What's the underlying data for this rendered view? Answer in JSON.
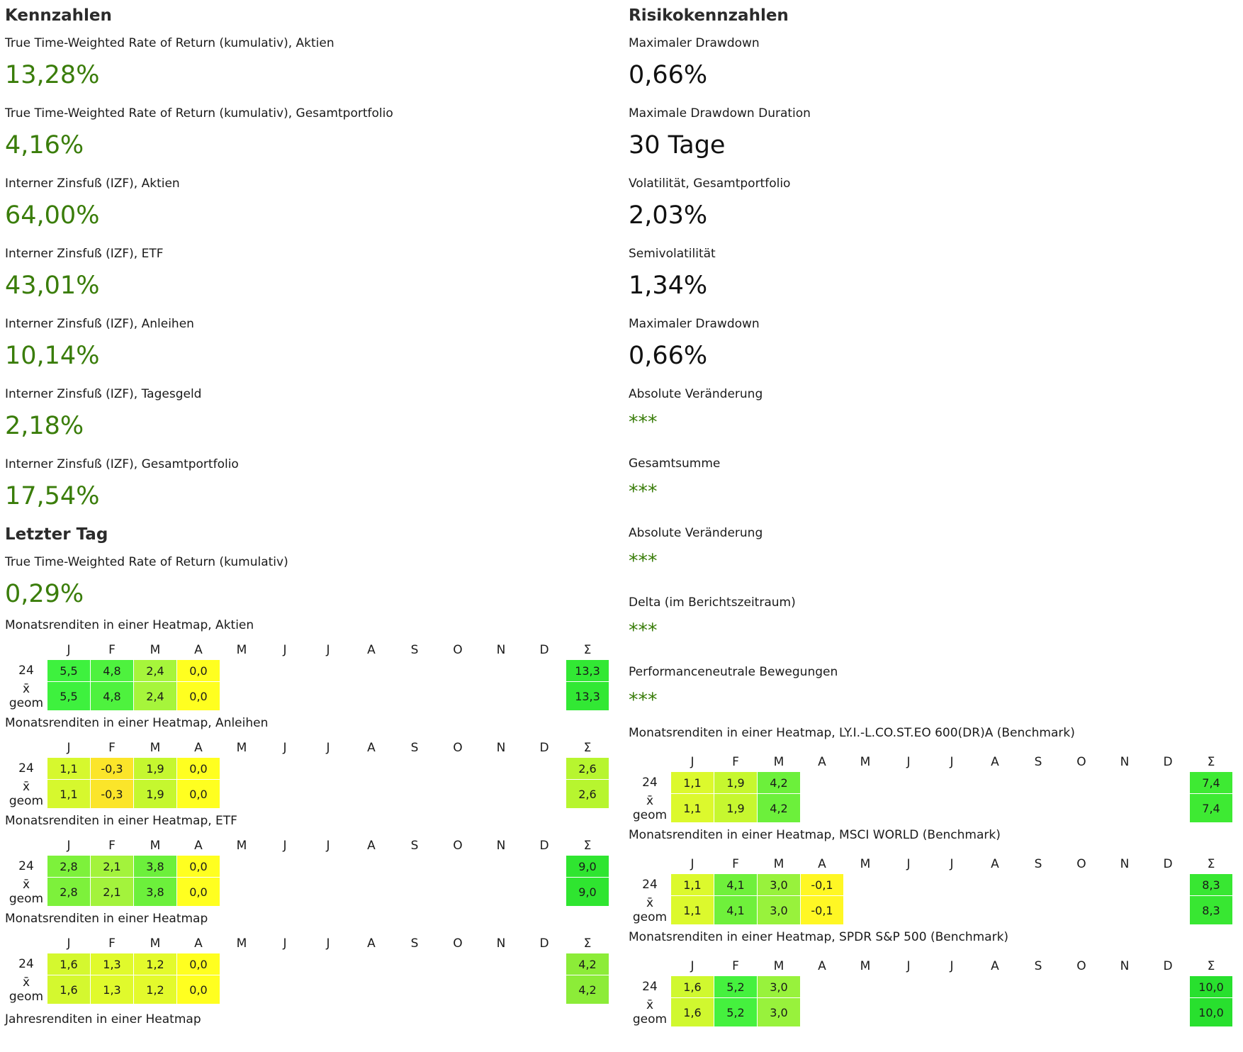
{
  "colors": {
    "heading": "#2b2b2b",
    "green_value": "#3a7d0a"
  },
  "left": {
    "title": "Kennzahlen",
    "metrics": [
      {
        "label": "True Time-Weighted Rate of Return (kumulativ), Aktien",
        "value": "13,28%"
      },
      {
        "label": "True Time-Weighted Rate of Return (kumulativ), Gesamtportfolio",
        "value": "4,16%"
      },
      {
        "label": "Interner Zinsfuß (IZF), Aktien",
        "value": "64,00%"
      },
      {
        "label": "Interner Zinsfuß (IZF), ETF",
        "value": "43,01%"
      },
      {
        "label": "Interner Zinsfuß (IZF), Anleihen",
        "value": "10,14%"
      },
      {
        "label": "Interner Zinsfuß (IZF), Tagesgeld",
        "value": "2,18%"
      },
      {
        "label": "Interner Zinsfuß (IZF), Gesamtportfolio",
        "value": "17,54%"
      }
    ],
    "last_day": {
      "title": "Letzter Tag",
      "label": "True Time-Weighted Rate of Return (kumulativ)",
      "value": "0,29%"
    },
    "heatmaps": [
      {
        "title": "Monatsrenditen in einer Heatmap, Aktien",
        "rows": [
          {
            "label": "24",
            "values": [
              "5,5",
              "4,8",
              "2,4",
              "0,0"
            ],
            "total": "13,3"
          },
          {
            "label": "x̄ geom",
            "values": [
              "5,5",
              "4,8",
              "2,4",
              "0,0"
            ],
            "total": "13,3"
          }
        ],
        "colors": [
          "#3ef13e",
          "#4ef23e",
          "#a6f53b",
          "#ffff20"
        ],
        "total_color": "#32e834"
      },
      {
        "title": "Monatsrenditen in einer Heatmap, Anleihen",
        "rows": [
          {
            "label": "24",
            "values": [
              "1,1",
              "-0,3",
              "1,9",
              "0,0"
            ],
            "total": "2,6"
          },
          {
            "label": "x̄ geom",
            "values": [
              "1,1",
              "-0,3",
              "1,9",
              "0,0"
            ],
            "total": "2,6"
          }
        ],
        "colors": [
          "#d6f82e",
          "#fbe52a",
          "#c5f72f",
          "#ffff20"
        ],
        "total_color": "#b7f52f"
      },
      {
        "title": "Monatsrenditen in einer Heatmap, ETF",
        "rows": [
          {
            "label": "24",
            "values": [
              "2,8",
              "2,1",
              "3,8",
              "0,0"
            ],
            "total": "9,0"
          },
          {
            "label": "x̄ geom",
            "values": [
              "2,8",
              "2,1",
              "3,8",
              "0,0"
            ],
            "total": "9,0"
          }
        ],
        "colors": [
          "#7df13b",
          "#a3f33c",
          "#6cf03b",
          "#ffff20"
        ],
        "total_color": "#2fe530"
      },
      {
        "title": "Monatsrenditen in einer Heatmap",
        "rows": [
          {
            "label": "24",
            "values": [
              "1,6",
              "1,3",
              "1,2",
              "0,0"
            ],
            "total": "4,2"
          },
          {
            "label": "x̄ geom",
            "values": [
              "1,6",
              "1,3",
              "1,2",
              "0,0"
            ],
            "total": "4,2"
          }
        ],
        "colors": [
          "#d4f82f",
          "#e0fa2c",
          "#e3fa2c",
          "#ffff20"
        ],
        "total_color": "#8cec38"
      }
    ],
    "cut_label": "Jahresrenditen in einer Heatmap"
  },
  "right": {
    "title": "Risikokennzahlen",
    "metrics": [
      {
        "label": "Maximaler Drawdown",
        "value": "0,66%"
      },
      {
        "label": "Maximale Drawdown Duration",
        "value": "30 Tage"
      },
      {
        "label": "Volatilität, Gesamtportfolio",
        "value": "2,03%"
      },
      {
        "label": "Semivolatilität",
        "value": "1,34%"
      },
      {
        "label": "Maximaler Drawdown",
        "value": "0,66%"
      }
    ],
    "masked": [
      {
        "label": "Absolute Veränderung",
        "value": "***"
      },
      {
        "label": "Gesamtsumme",
        "value": "***"
      },
      {
        "label": "Absolute Veränderung",
        "value": "***"
      },
      {
        "label": "Delta (im Berichtszeitraum)",
        "value": "***"
      },
      {
        "label": "Performanceneutrale Bewegungen",
        "value": "***"
      }
    ],
    "heatmaps": [
      {
        "title": "Monatsrenditen in einer Heatmap, LY.I.-L.CO.ST.EO 600(DR)A (Benchmark)",
        "rows": [
          {
            "label": "24",
            "values": [
              "1,1",
              "1,9",
              "4,2"
            ],
            "total": "7,4"
          },
          {
            "label": "x̄ geom",
            "values": [
              "1,1",
              "1,9",
              "4,2"
            ],
            "total": "7,4"
          }
        ],
        "colors": [
          "#dcf92d",
          "#c6f72f",
          "#6cf03b"
        ],
        "total_color": "#3eea33"
      },
      {
        "title": "Monatsrenditen in einer Heatmap, MSCI WORLD (Benchmark)",
        "rows": [
          {
            "label": "24",
            "values": [
              "1,1",
              "4,1",
              "3,0",
              "-0,1"
            ],
            "total": "8,3"
          },
          {
            "label": "x̄ geom",
            "values": [
              "1,1",
              "4,1",
              "3,0",
              "-0,1"
            ],
            "total": "8,3"
          }
        ],
        "colors": [
          "#dcf92d",
          "#6ff03b",
          "#98f23c",
          "#fff724"
        ],
        "total_color": "#38e732"
      },
      {
        "title": "Monatsrenditen in einer Heatmap, SPDR S&P 500 (Benchmark)",
        "rows": [
          {
            "label": "24",
            "values": [
              "1,6",
              "5,2",
              "3,0"
            ],
            "total": "10,0"
          },
          {
            "label": "x̄ geom",
            "values": [
              "1,6",
              "5,2",
              "3,0"
            ],
            "total": "10,0"
          }
        ],
        "colors": [
          "#d0f82f",
          "#45f13e",
          "#98f23c"
        ],
        "total_color": "#28e02e"
      }
    ]
  },
  "months": [
    "J",
    "F",
    "M",
    "A",
    "M",
    "J",
    "J",
    "A",
    "S",
    "O",
    "N",
    "D",
    "Σ"
  ]
}
